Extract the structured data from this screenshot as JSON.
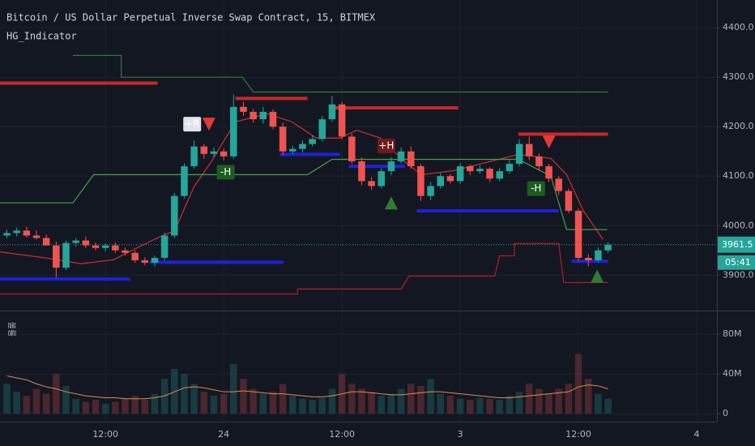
{
  "chart_data": [
    {
      "type": "candlestick",
      "title": "Bitcoin / US Dollar Perpetual Inverse Swap Contract, 15, BITMEX",
      "subtitle": "HG_Indicator",
      "x": [
        2,
        3,
        4,
        5,
        6,
        7,
        8,
        9,
        10,
        11,
        12,
        13,
        14,
        15,
        16,
        17,
        18,
        19,
        20,
        21,
        22,
        23,
        24,
        25,
        26,
        27,
        28,
        29,
        30,
        31,
        32,
        33,
        34,
        35,
        36,
        37,
        38,
        39,
        40,
        41,
        42,
        43,
        44,
        45,
        46,
        47,
        48,
        49,
        50,
        51,
        52,
        53,
        54,
        55,
        56,
        57,
        58,
        59,
        60,
        61,
        62,
        63
      ],
      "open": [
        3980,
        3985,
        3990,
        3980,
        3975,
        3960,
        3915,
        3965,
        3970,
        3960,
        3955,
        3960,
        3950,
        3945,
        3930,
        3925,
        3935,
        3980,
        4060,
        4120,
        4160,
        4145,
        4150,
        4140,
        4240,
        4230,
        4215,
        4230,
        4200,
        4150,
        4155,
        4165,
        4175,
        4215,
        4245,
        4180,
        4130,
        4090,
        4080,
        4110,
        4130,
        4150,
        4120,
        4060,
        4080,
        4100,
        4090,
        4120,
        4110,
        4115,
        4095,
        4110,
        4125,
        4165,
        4140,
        4120,
        4095,
        4070,
        4030,
        3935,
        3930,
        3950
      ],
      "high": [
        3992,
        3996,
        3998,
        3990,
        3982,
        3968,
        3970,
        3975,
        3978,
        3966,
        3964,
        3966,
        3956,
        3950,
        3936,
        3940,
        3986,
        4066,
        4126,
        4172,
        4165,
        4158,
        4156,
        4265,
        4250,
        4236,
        4240,
        4235,
        4208,
        4162,
        4172,
        4182,
        4222,
        4262,
        4250,
        4186,
        4138,
        4098,
        4116,
        4138,
        4158,
        4160,
        4125,
        4088,
        4106,
        4104,
        4126,
        4124,
        4122,
        4118,
        4116,
        4132,
        4175,
        4180,
        4146,
        4125,
        4100,
        4075,
        4035,
        3942,
        3956,
        3966
      ],
      "low": [
        3975,
        3978,
        3976,
        3972,
        3965,
        3895,
        3910,
        3958,
        3955,
        3950,
        3948,
        3945,
        3940,
        3925,
        3920,
        3918,
        3930,
        3975,
        4055,
        4115,
        4135,
        4138,
        4132,
        4135,
        4222,
        4208,
        4206,
        4195,
        4142,
        4145,
        4148,
        4160,
        4170,
        4210,
        4175,
        4125,
        4082,
        4072,
        4075,
        4102,
        4125,
        4115,
        4050,
        4052,
        4075,
        4085,
        4085,
        4102,
        4105,
        4088,
        4090,
        4105,
        4120,
        4132,
        4112,
        4088,
        4062,
        4025,
        3928,
        3918,
        3926,
        3945
      ],
      "close": [
        3985,
        3990,
        3980,
        3975,
        3960,
        3915,
        3965,
        3970,
        3960,
        3955,
        3960,
        3950,
        3945,
        3930,
        3925,
        3935,
        3980,
        4060,
        4120,
        4160,
        4145,
        4150,
        4140,
        4240,
        4230,
        4215,
        4230,
        4200,
        4150,
        4155,
        4165,
        4175,
        4215,
        4245,
        4180,
        4130,
        4090,
        4080,
        4110,
        4130,
        4150,
        4120,
        4060,
        4080,
        4100,
        4090,
        4120,
        4110,
        4115,
        4095,
        4110,
        4125,
        4165,
        4140,
        4120,
        4095,
        4070,
        4030,
        3935,
        3930,
        3950,
        3961.5
      ],
      "up_color": "#26a69a",
      "down_color": "#ef5350",
      "lines": [
        {
          "color": "#d32f2f",
          "x": [
            1.3,
            6.2,
            9.5,
            12.8,
            16.1,
            17.8,
            19.0,
            21.0,
            22.7,
            25.2,
            28.4,
            30.9,
            33.4,
            35.8,
            37.5,
            39.9,
            42.4,
            44.1,
            47.3,
            53.9,
            57.2,
            58.8,
            60.5,
            62.5
          ],
          "y": [
            3947,
            3934,
            3923,
            3931,
            3964,
            3980,
            3989,
            4079,
            4128,
            4210,
            4226,
            4210,
            4177,
            4177,
            4193,
            4177,
            4128,
            4103,
            4111,
            4144,
            4136,
            4103,
            4030,
            3972
          ]
        },
        {
          "color": "#2e7d32",
          "x": [
            8.7,
            13.6,
            13.6,
            25.9,
            27.0,
            63.0
          ],
          "y": [
            4344,
            4344,
            4300,
            4300,
            4270,
            4270
          ]
        },
        {
          "color": "#43a047",
          "x": [
            1.3,
            8.7,
            10.8,
            32.5,
            35.0,
            53.9,
            57.2,
            58.8,
            62.9
          ],
          "y": [
            4046,
            4046,
            4103,
            4103,
            4134,
            4134,
            4100,
            3992,
            3992
          ]
        },
        {
          "color": "#b71c1c",
          "x": [
            1.3,
            31.5,
            31.5,
            42.0,
            42.8,
            51.5,
            52.0,
            53.5,
            53.5,
            58.0,
            58.5,
            63.0
          ],
          "y": [
            3862,
            3862,
            3872,
            3872,
            3898,
            3898,
            3939,
            3939,
            3964,
            3964,
            3885,
            3885
          ]
        }
      ],
      "levels": [
        {
          "color": "#c62828",
          "x": [
            1.3,
            17.3
          ],
          "y": 4288
        },
        {
          "color": "#c62828",
          "x": [
            25.2,
            32.5
          ],
          "y": 4257
        },
        {
          "color": "#c62828",
          "x": [
            35.0,
            47.8
          ],
          "y": 4238
        },
        {
          "color": "#c62828",
          "x": [
            53.9,
            63.0
          ],
          "y": 4185
        },
        {
          "color": "#1e22d6",
          "x": [
            1.3,
            14.5
          ],
          "y": 3892
        },
        {
          "color": "#1e22d6",
          "x": [
            16.5,
            30.1
          ],
          "y": 3926
        },
        {
          "color": "#1e22d6",
          "x": [
            29.7,
            35.8
          ],
          "y": 4144
        },
        {
          "color": "#1e22d6",
          "x": [
            36.7,
            42.4
          ],
          "y": 4120
        },
        {
          "color": "#1e22d6",
          "x": [
            43.6,
            58.0
          ],
          "y": 4030
        },
        {
          "color": "#1e22d6",
          "x": [
            59.3,
            63.0
          ],
          "y": 3928
        }
      ],
      "markers": [
        {
          "shape": "triangle-down",
          "color": "#e53935",
          "x": 22.5,
          "y": 4205
        },
        {
          "shape": "triangle-down",
          "color": "#e53935",
          "x": 57.0,
          "y": 4169
        },
        {
          "shape": "triangle-up",
          "color": "#2e7d32",
          "x": 41.0,
          "y": 4046
        },
        {
          "shape": "triangle-up",
          "color": "#2e7d32",
          "x": 61.9,
          "y": 3898
        }
      ],
      "annotations": [
        {
          "text": "+R",
          "x": 20.8,
          "y": 4205,
          "color": "#e0e3eb"
        },
        {
          "text": "-H",
          "x": 24.2,
          "y": 4108,
          "color": "#1b5e20"
        },
        {
          "text": "+H",
          "x": 40.5,
          "y": 4161,
          "color": "#6d1b1b"
        },
        {
          "text": "-H",
          "x": 55.7,
          "y": 4075,
          "color": "#1b5e20"
        }
      ],
      "last_price": 3961.5,
      "countdown": "05:41",
      "xlim": [
        1.3,
        74.05
      ],
      "ylim": [
        3830,
        4456
      ],
      "xticks": [
        {
          "value": 12,
          "label": "12:00"
        },
        24,
        {
          "value": 36,
          "label": "12:00"
        },
        {
          "value": 48,
          "label": "3"
        },
        {
          "value": 60,
          "label": "12:00"
        },
        {
          "value": 72,
          "label": "4"
        }
      ],
      "yticks": [
        {
          "value": 3900,
          "label": "3900.0"
        },
        {
          "value": 4000,
          "label": "4000.0"
        },
        {
          "value": 4100,
          "label": "4100.0"
        },
        {
          "value": 4200,
          "label": "4200.0"
        },
        {
          "value": 4300,
          "label": "4300.0"
        },
        {
          "value": 4400,
          "label": "4400.0"
        }
      ],
      "grid": true
    },
    {
      "type": "bar",
      "title": "볼륨",
      "values": [
        30,
        22,
        18,
        25,
        20,
        40,
        28,
        15,
        12,
        14,
        10,
        12,
        15,
        18,
        14,
        20,
        35,
        45,
        40,
        30,
        22,
        18,
        20,
        50,
        35,
        25,
        20,
        22,
        30,
        18,
        15,
        14,
        16,
        25,
        40,
        30,
        25,
        22,
        18,
        20,
        25,
        30,
        28,
        35,
        20,
        18,
        15,
        14,
        16,
        15,
        14,
        18,
        22,
        30,
        25,
        20,
        25,
        30,
        60,
        35,
        20,
        15
      ],
      "ma": [
        38,
        36,
        34,
        30,
        27,
        25,
        22,
        20,
        18,
        17,
        16,
        16,
        15,
        15,
        15,
        16,
        18,
        22,
        26,
        27,
        26,
        24,
        22,
        22,
        23,
        22,
        21,
        20,
        20,
        19,
        18,
        17,
        17,
        18,
        20,
        22,
        22,
        21,
        20,
        19,
        19,
        20,
        21,
        22,
        22,
        21,
        20,
        19,
        18,
        17,
        16,
        16,
        17,
        18,
        19,
        20,
        21,
        22,
        27,
        29,
        28,
        25
      ],
      "ma_color": "#e08a4f",
      "ylim": [
        -8,
        102
      ],
      "yticks": [
        0,
        {
          "value": 40,
          "label": "40M"
        },
        {
          "value": 80,
          "label": "80M"
        }
      ],
      "grid": true
    }
  ]
}
